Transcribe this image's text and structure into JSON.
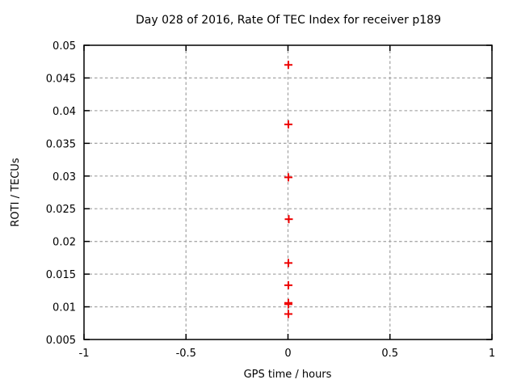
{
  "window": {
    "background": "#ffffff"
  },
  "chart_data": {
    "type": "scatter",
    "title": "Day 028 of 2016, Rate Of TEC Index for receiver p189",
    "xlabel": "GPS time / hours",
    "ylabel": "ROTI / TECUs",
    "xlim": [
      -1,
      1
    ],
    "ylim": [
      0.005,
      0.05
    ],
    "xticks": [
      -1,
      -0.5,
      0,
      0.5,
      1
    ],
    "xtick_labels": [
      "-1",
      "-0.5",
      "0",
      "0.5",
      "1"
    ],
    "yticks": [
      0.005,
      0.01,
      0.015,
      0.02,
      0.025,
      0.03,
      0.035,
      0.04,
      0.045,
      0.05
    ],
    "ytick_labels": [
      "0.005",
      "0.01",
      "0.015",
      "0.02",
      "0.025",
      "0.03",
      "0.035",
      "0.04",
      "0.045",
      "0.05"
    ],
    "grid": true,
    "grid_style": "dashed",
    "legend": "none",
    "series": [
      {
        "name": "ROTI",
        "marker": "plus",
        "color": "#ee0000",
        "points": [
          {
            "x": 0.002,
            "y": 0.047
          },
          {
            "x": 0.002,
            "y": 0.0379
          },
          {
            "x": 0.002,
            "y": 0.0298
          },
          {
            "x": 0.004,
            "y": 0.0234
          },
          {
            "x": 0.002,
            "y": 0.0167
          },
          {
            "x": 0.002,
            "y": 0.0133
          },
          {
            "x": 0.002,
            "y": 0.0106
          },
          {
            "x": 0.002,
            "y": 0.0104
          },
          {
            "x": 0.002,
            "y": 0.0089
          }
        ]
      }
    ]
  },
  "colors": {
    "marker": "#ee0000",
    "grid": "#a9a9a9",
    "axis": "#000000",
    "text": "#000000",
    "background": "#ffffff"
  }
}
